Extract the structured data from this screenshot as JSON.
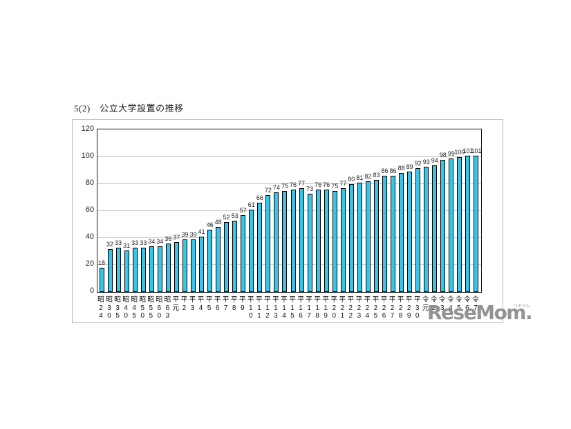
{
  "page": {
    "title": "5(2)　公立大学設置の推移"
  },
  "watermark": {
    "text": "ReseMom.",
    "ruby": "リセマム",
    "color": "#8a8a8a"
  },
  "chart_data": {
    "type": "bar",
    "title": "5(2)　公立大学設置の推移",
    "categories": [
      "昭24",
      "昭30",
      "昭35",
      "昭40",
      "昭45",
      "昭50",
      "昭55",
      "昭60",
      "昭63",
      "平元",
      "平2",
      "平3",
      "平4",
      "平5",
      "平6",
      "平7",
      "平8",
      "平9",
      "平10",
      "平11",
      "平12",
      "平13",
      "平14",
      "平15",
      "平16",
      "平17",
      "平18",
      "平19",
      "平20",
      "平21",
      "平22",
      "平23",
      "平24",
      "平25",
      "平26",
      "平27",
      "平28",
      "平29",
      "平30",
      "令元",
      "令2",
      "令3",
      "令4",
      "令5",
      "令6",
      "令7"
    ],
    "values": [
      18,
      32,
      33,
      31,
      33,
      33,
      34,
      34,
      36,
      37,
      39,
      39,
      41,
      46,
      48,
      52,
      53,
      57,
      61,
      66,
      72,
      74,
      75,
      76,
      77,
      73,
      76,
      76,
      75,
      77,
      80,
      81,
      82,
      83,
      86,
      86,
      88,
      89,
      92,
      93,
      94,
      98,
      99,
      100,
      101,
      101
    ],
    "xlabel": "",
    "ylabel": "",
    "ylim": [
      0,
      120
    ],
    "yticks": [
      0,
      20,
      40,
      60,
      80,
      100,
      120
    ],
    "grid": true,
    "legend_position": "none",
    "colors": {
      "bar_fill": "#38C6E8",
      "bar_border": "#000000",
      "gridline": "#c8c8c8",
      "plot_border": "#141414",
      "frame_border": "#b9b9b9",
      "text": "#1a1a1a"
    }
  }
}
